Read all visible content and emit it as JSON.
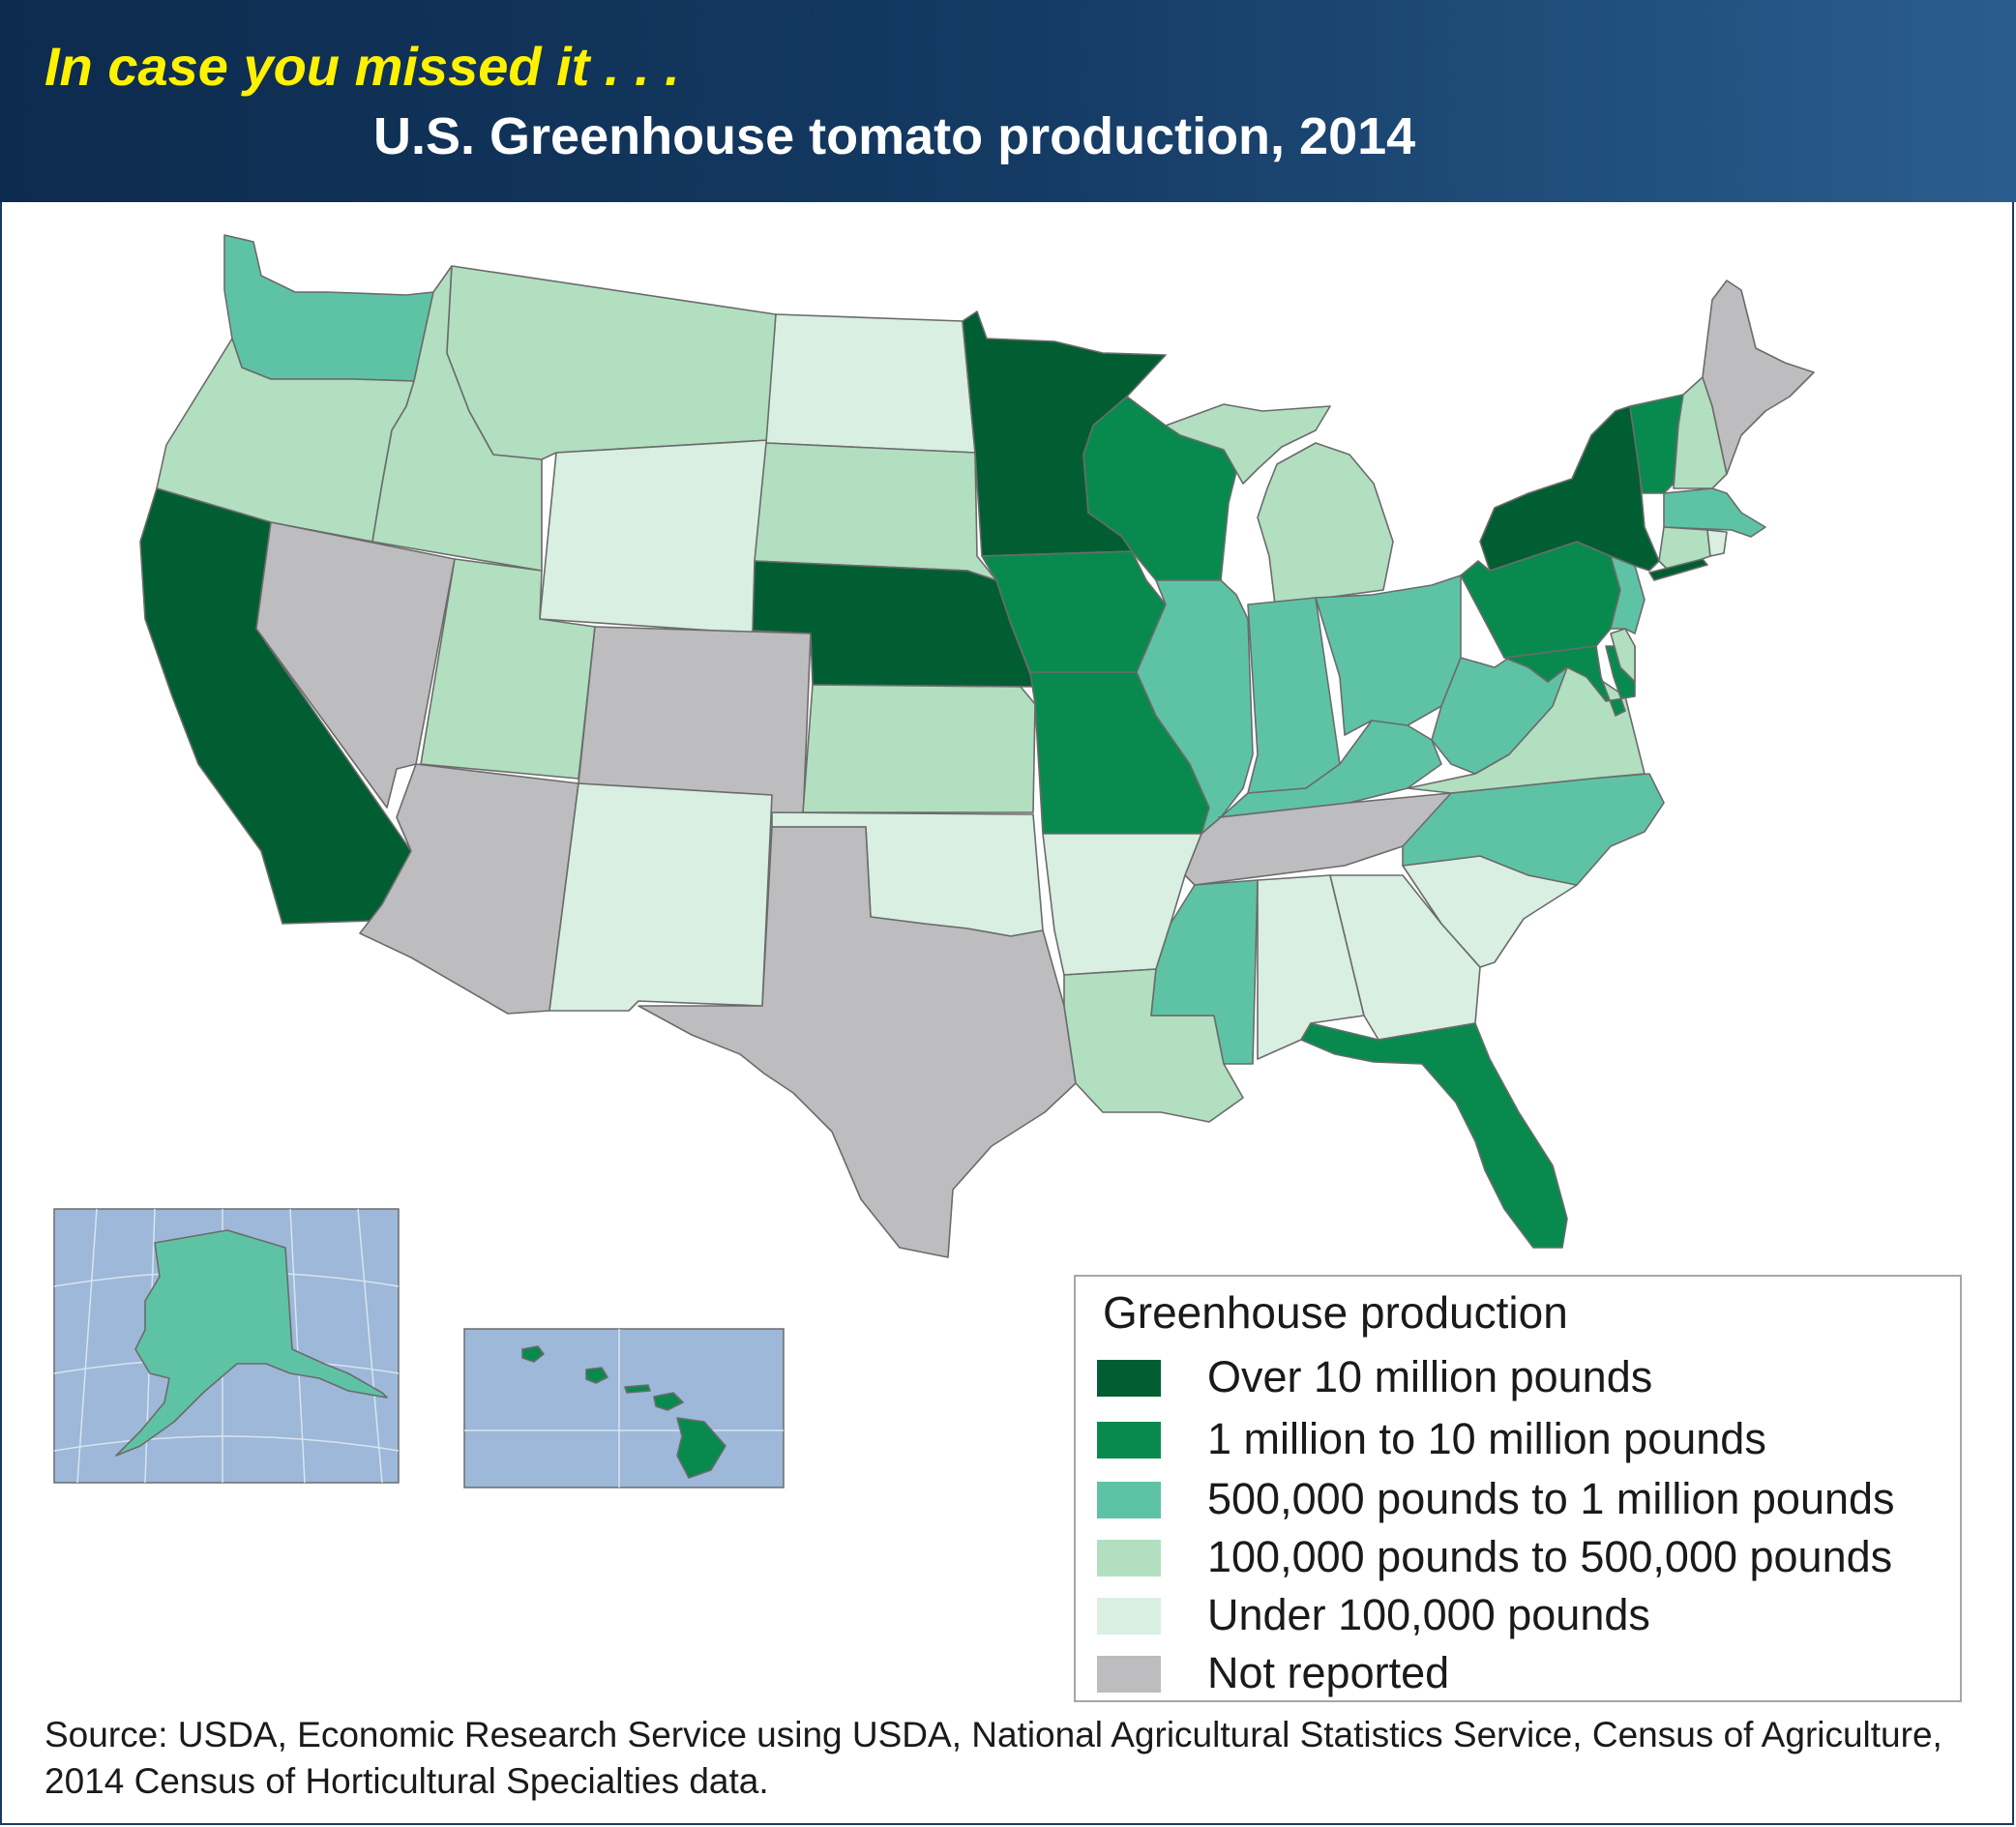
{
  "header": {
    "kicker": "In case you missed it . . .",
    "title": "U.S. Greenhouse tomato production, 2014"
  },
  "colors": {
    "header_bg": "#143a63",
    "kicker": "#fff200",
    "over_10m": "#005e32",
    "m1_10m": "#088a4e",
    "k500_1m": "#5ec3a5",
    "k100_500": "#b1dfc0",
    "under_100k": "#d8efe2",
    "not_reported": "#bdbdbf",
    "water": "#9db8d8"
  },
  "legend": {
    "title": "Greenhouse production",
    "items": [
      {
        "key": "over_10m",
        "label": "Over 10 million pounds"
      },
      {
        "key": "m1_10m",
        "label": "1 million to 10 million pounds"
      },
      {
        "key": "k500_1m",
        "label": "500,000 pounds to 1 million pounds"
      },
      {
        "key": "k100_500",
        "label": "100,000 pounds to 500,000 pounds"
      },
      {
        "key": "under_100k",
        "label": "Under 100,000 pounds"
      },
      {
        "key": "not_reported",
        "label": "Not reported"
      }
    ]
  },
  "map_data": {
    "over_10m": [
      "California",
      "Nebraska",
      "Minnesota",
      "New York"
    ],
    "m1_10m": [
      "Iowa",
      "Wisconsin",
      "Missouri",
      "Pennsylvania",
      "Vermont",
      "Maryland",
      "Florida",
      "Hawaii"
    ],
    "k500_1m": [
      "Washington",
      "Illinois",
      "Indiana",
      "Ohio",
      "Kentucky",
      "West Virginia",
      "North Carolina",
      "Mississippi",
      "New Jersey",
      "Massachusetts",
      "Alaska"
    ],
    "k100_500": [
      "Oregon",
      "Idaho",
      "Montana",
      "Utah",
      "South Dakota",
      "Kansas",
      "Michigan",
      "Virginia",
      "Louisiana",
      "New Hampshire",
      "Delaware",
      "Connecticut"
    ],
    "under_100k": [
      "Wyoming",
      "North Dakota",
      "New Mexico",
      "Oklahoma",
      "Arkansas",
      "Alabama",
      "Georgia",
      "South Carolina",
      "Rhode Island"
    ],
    "not_reported": [
      "Nevada",
      "Colorado",
      "Arizona",
      "Texas",
      "Tennessee",
      "Maine"
    ]
  },
  "source": "Source: USDA, Economic Research Service using USDA, National Agricultural Statistics Service, Census of Agriculture, 2014 Census of Horticultural Specialties data."
}
